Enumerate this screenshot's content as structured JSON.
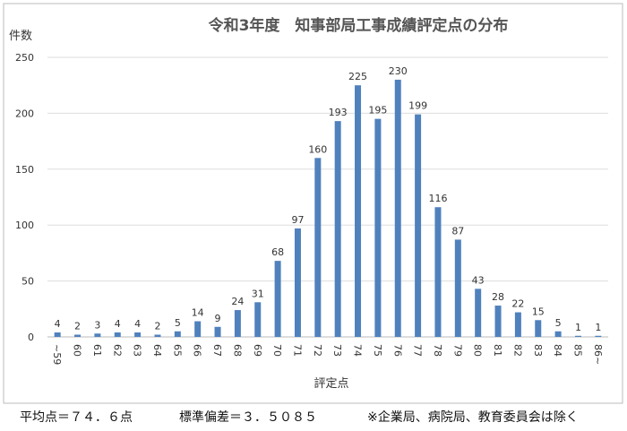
{
  "chart_data": {
    "type": "bar",
    "title": "令和3年度　知事部局工事成績評定点の分布",
    "y_label": "件数",
    "x_label": "評定点",
    "categories": [
      "~59",
      "60",
      "61",
      "62",
      "63",
      "64",
      "65",
      "66",
      "67",
      "68",
      "69",
      "70",
      "71",
      "72",
      "73",
      "74",
      "75",
      "76",
      "77",
      "78",
      "79",
      "80",
      "81",
      "82",
      "83",
      "84",
      "85",
      "86~"
    ],
    "values": [
      4,
      2,
      3,
      4,
      4,
      2,
      5,
      14,
      9,
      24,
      31,
      68,
      97,
      160,
      193,
      225,
      195,
      230,
      199,
      116,
      87,
      43,
      28,
      22,
      15,
      5,
      1,
      1
    ],
    "color": "#4f81bd",
    "ylim": [
      0,
      250
    ],
    "yticks": [
      0,
      50,
      100,
      150,
      200,
      250
    ],
    "grid": true,
    "notes": [
      "平均点＝７４．６点",
      "標準偏差＝３．５０８５",
      "※企業局、病院局、教育委員会は除く"
    ]
  }
}
